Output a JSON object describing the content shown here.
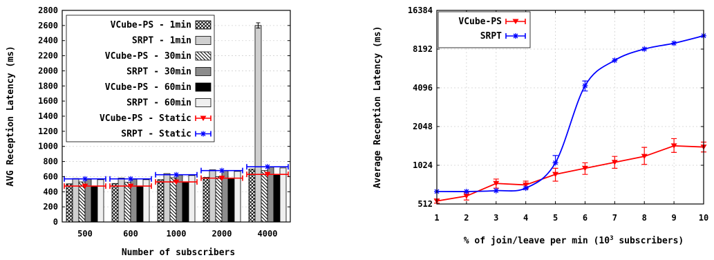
{
  "chart_data": [
    {
      "type": "bar",
      "xlabel": "Number of subscribers",
      "ylabel": "AVG Reception Latency (ms)",
      "categories": [
        "500",
        "600",
        "1000",
        "2000",
        "4000"
      ],
      "ylim": [
        0,
        2800
      ],
      "yticks": [
        "0",
        "200",
        "400",
        "600",
        "800",
        "1000",
        "1200",
        "1400",
        "1600",
        "1800",
        "2000",
        "2200",
        "2400",
        "2600",
        "2800"
      ],
      "grid": true,
      "legend_position": "top-left",
      "series": [
        {
          "name": "VCube-PS - 1min",
          "values": [
            505,
            510,
            560,
            590,
            700
          ],
          "pattern": "crosshatch"
        },
        {
          "name": "SRPT - 1min",
          "values": [
            575,
            580,
            640,
            690,
            2600
          ],
          "pattern": "light-gray",
          "errors": [
            0,
            0,
            0,
            0,
            35
          ]
        },
        {
          "name": "VCube-PS - 30min",
          "values": [
            530,
            525,
            585,
            600,
            680
          ],
          "pattern": "diagonal-lines"
        },
        {
          "name": "SRPT - 30min",
          "values": [
            565,
            565,
            620,
            680,
            725
          ],
          "pattern": "dark-gray"
        },
        {
          "name": "VCube-PS - 60min",
          "values": [
            470,
            470,
            525,
            570,
            630
          ],
          "pattern": "black"
        },
        {
          "name": "SRPT - 60min",
          "values": [
            560,
            560,
            615,
            670,
            715
          ],
          "pattern": "very-light-gray"
        }
      ],
      "lines": [
        {
          "name": "VCube-PS - Static",
          "values": [
            475,
            475,
            530,
            580,
            630
          ],
          "color": "#ff0000",
          "marker": "triangle-down"
        },
        {
          "name": "SRPT - Static",
          "values": [
            570,
            570,
            625,
            680,
            730
          ],
          "color": "#0000ff",
          "marker": "star"
        }
      ]
    },
    {
      "type": "line",
      "xlabel": "% of join/leave per min (10",
      "xlabel_sup": "3",
      "xlabel_tail": " subscribers)",
      "ylabel": "Average Reception Latency (ms)",
      "x": [
        1,
        2,
        3,
        4,
        5,
        6,
        7,
        8,
        9,
        10
      ],
      "xticks": [
        "1",
        "2",
        "3",
        "4",
        "5",
        "6",
        "7",
        "8",
        "9",
        "10"
      ],
      "yscale": "log2",
      "ylim": [
        512,
        16384
      ],
      "yticks": [
        "512",
        "1024",
        "2048",
        "4096",
        "8192",
        "16384"
      ],
      "grid": true,
      "legend_position": "top-left",
      "series": [
        {
          "name": "VCube-PS",
          "color": "#ff0000",
          "marker": "triangle-down",
          "values": [
            540,
            590,
            740,
            720,
            870,
            970,
            1080,
            1200,
            1450,
            1420
          ],
          "err_low": [
            20,
            40,
            60,
            50,
            100,
            100,
            110,
            160,
            160,
            120
          ],
          "err_high": [
            20,
            40,
            60,
            50,
            100,
            100,
            120,
            210,
            200,
            130
          ]
        },
        {
          "name": "SRPT",
          "color": "#0000ff",
          "marker": "star",
          "values": [
            640,
            640,
            650,
            680,
            1070,
            4250,
            6700,
            8200,
            9100,
            10400
          ],
          "err_low": [
            0,
            0,
            0,
            0,
            0,
            380,
            0,
            0,
            0,
            0
          ],
          "err_high": [
            0,
            0,
            0,
            0,
            150,
            380,
            0,
            0,
            0,
            0
          ]
        }
      ]
    }
  ]
}
